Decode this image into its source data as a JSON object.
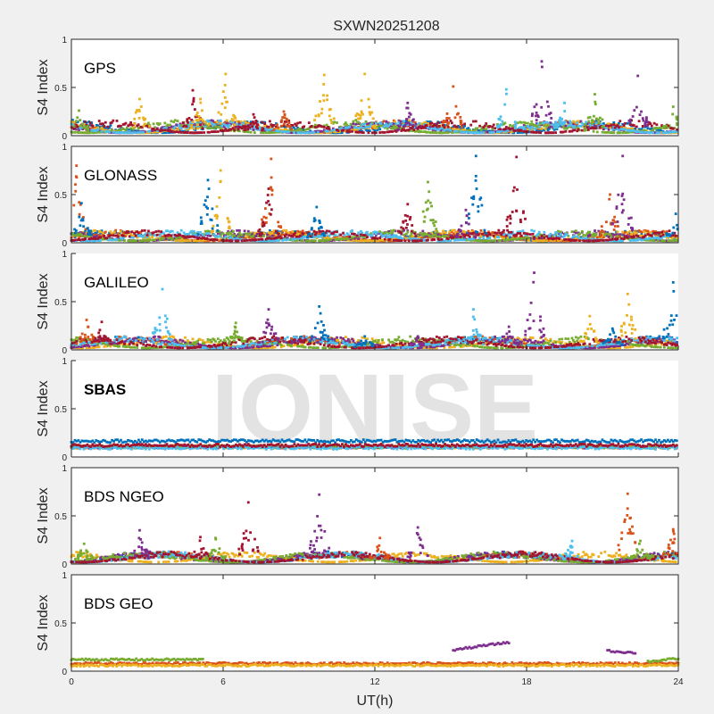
{
  "chart_data": {
    "type": "scatter",
    "title": "SXWN20251208",
    "xlabel": "UT(h)",
    "xlim": [
      0,
      24
    ],
    "xticks": [
      0,
      6,
      12,
      18,
      24
    ],
    "watermark": "IONISE",
    "series_colors": [
      "#0072bd",
      "#d95319",
      "#edb120",
      "#7e2f8e",
      "#77ac30",
      "#4dbeee",
      "#a2142f"
    ],
    "panels": [
      {
        "name": "GPS",
        "ylabel": "S4 Index",
        "ylim": [
          0,
          1
        ],
        "yticks": [
          0,
          0.5,
          1
        ],
        "baseline": [
          0.03,
          0.15
        ],
        "spikes": [
          {
            "t": 0.3,
            "peak": 0.26,
            "color": 4
          },
          {
            "t": 2.7,
            "peak": 0.38,
            "color": 2
          },
          {
            "t": 4.8,
            "peak": 0.47,
            "color": 6
          },
          {
            "t": 5.1,
            "peak": 0.38,
            "color": 2
          },
          {
            "t": 6.1,
            "peak": 0.64,
            "color": 2
          },
          {
            "t": 7.2,
            "peak": 0.22,
            "color": 6
          },
          {
            "t": 8.4,
            "peak": 0.25,
            "color": 1
          },
          {
            "t": 10.0,
            "peak": 0.63,
            "color": 2
          },
          {
            "t": 11.6,
            "peak": 0.64,
            "color": 2
          },
          {
            "t": 13.3,
            "peak": 0.34,
            "color": 3
          },
          {
            "t": 15.1,
            "peak": 0.51,
            "color": 1
          },
          {
            "t": 17.2,
            "peak": 0.48,
            "color": 5
          },
          {
            "t": 18.6,
            "peak": 0.77,
            "color": 3
          },
          {
            "t": 19.5,
            "peak": 0.34,
            "color": 5
          },
          {
            "t": 20.7,
            "peak": 0.43,
            "color": 4
          },
          {
            "t": 22.4,
            "peak": 0.62,
            "color": 3
          },
          {
            "t": 23.8,
            "peak": 0.3,
            "color": 4
          }
        ]
      },
      {
        "name": "GLONASS",
        "ylabel": "S4 Index",
        "ylim": [
          0,
          1
        ],
        "yticks": [
          0,
          0.5,
          1
        ],
        "baseline": [
          0.02,
          0.12
        ],
        "spikes": [
          {
            "t": 0.2,
            "peak": 0.8,
            "color": 1
          },
          {
            "t": 0.4,
            "peak": 0.41,
            "color": 0
          },
          {
            "t": 5.4,
            "peak": 0.65,
            "color": 0
          },
          {
            "t": 5.9,
            "peak": 0.75,
            "color": 2
          },
          {
            "t": 7.9,
            "peak": 0.87,
            "color": 1
          },
          {
            "t": 7.8,
            "peak": 0.56,
            "color": 6
          },
          {
            "t": 9.7,
            "peak": 0.37,
            "color": 0
          },
          {
            "t": 13.3,
            "peak": 0.4,
            "color": 6
          },
          {
            "t": 14.1,
            "peak": 0.63,
            "color": 4
          },
          {
            "t": 16.0,
            "peak": 0.9,
            "color": 0
          },
          {
            "t": 15.6,
            "peak": 0.34,
            "color": 3
          },
          {
            "t": 17.6,
            "peak": 0.89,
            "color": 6
          },
          {
            "t": 21.3,
            "peak": 0.5,
            "color": 1
          },
          {
            "t": 21.8,
            "peak": 0.9,
            "color": 3
          },
          {
            "t": 23.9,
            "peak": 0.3,
            "color": 0
          }
        ]
      },
      {
        "name": "GALILEO",
        "ylabel": "S4 Index",
        "ylim": [
          0,
          1
        ],
        "yticks": [
          0,
          0.5,
          1
        ],
        "baseline": [
          0.02,
          0.13
        ],
        "spikes": [
          {
            "t": 0.6,
            "peak": 0.31,
            "color": 1
          },
          {
            "t": 1.2,
            "peak": 0.29,
            "color": 6
          },
          {
            "t": 3.6,
            "peak": 0.63,
            "color": 5
          },
          {
            "t": 6.5,
            "peak": 0.28,
            "color": 4
          },
          {
            "t": 7.8,
            "peak": 0.42,
            "color": 3
          },
          {
            "t": 9.8,
            "peak": 0.45,
            "color": 0
          },
          {
            "t": 11.6,
            "peak": 0.14,
            "color": 0
          },
          {
            "t": 13.7,
            "peak": 0.14,
            "color": 3
          },
          {
            "t": 15.9,
            "peak": 0.42,
            "color": 5
          },
          {
            "t": 17.3,
            "peak": 0.24,
            "color": 3
          },
          {
            "t": 18.3,
            "peak": 0.8,
            "color": 3
          },
          {
            "t": 20.5,
            "peak": 0.35,
            "color": 2
          },
          {
            "t": 21.4,
            "peak": 0.22,
            "color": 0
          },
          {
            "t": 22.0,
            "peak": 0.58,
            "color": 2
          },
          {
            "t": 23.8,
            "peak": 0.7,
            "color": 0
          }
        ]
      },
      {
        "name": "SBAS",
        "ylabel": "S4 Index",
        "ylim": [
          0,
          1
        ],
        "yticks": [
          0,
          0.5,
          1
        ],
        "baseline": [
          0.07,
          0.18
        ],
        "spikes": []
      },
      {
        "name": "BDS NGEO",
        "ylabel": "S4 Index",
        "ylim": [
          0,
          1
        ],
        "yticks": [
          0,
          0.5,
          1
        ],
        "baseline": [
          0.02,
          0.12
        ],
        "spikes": [
          {
            "t": 0.5,
            "peak": 0.21,
            "color": 4
          },
          {
            "t": 2.7,
            "peak": 0.35,
            "color": 3
          },
          {
            "t": 5.1,
            "peak": 0.28,
            "color": 6
          },
          {
            "t": 5.7,
            "peak": 0.27,
            "color": 4
          },
          {
            "t": 7.0,
            "peak": 0.64,
            "color": 6
          },
          {
            "t": 9.8,
            "peak": 0.72,
            "color": 3
          },
          {
            "t": 12.2,
            "peak": 0.27,
            "color": 1
          },
          {
            "t": 13.7,
            "peak": 0.38,
            "color": 3
          },
          {
            "t": 19.8,
            "peak": 0.24,
            "color": 5
          },
          {
            "t": 22.0,
            "peak": 0.73,
            "color": 1
          },
          {
            "t": 22.5,
            "peak": 0.24,
            "color": 4
          },
          {
            "t": 23.8,
            "peak": 0.36,
            "color": 1
          }
        ]
      },
      {
        "name": "BDS GEO",
        "ylabel": "S4 Index",
        "ylim": [
          0,
          1
        ],
        "yticks": [
          0,
          0.5,
          1
        ],
        "baseline": [
          0.05,
          0.1
        ],
        "tracks": [
          {
            "color": 4,
            "t0": 0,
            "t1": 5.2,
            "y": 0.12
          },
          {
            "color": 1,
            "t0": 0,
            "t1": 24,
            "y": 0.08
          },
          {
            "color": 2,
            "t0": 0,
            "t1": 24,
            "y": 0.06
          },
          {
            "color": 3,
            "t0": 15.1,
            "t1": 17.3,
            "y": 0.22,
            "y_end": 0.3
          },
          {
            "color": 3,
            "t0": 21.2,
            "t1": 22.3,
            "y": 0.21,
            "y_end": 0.19
          },
          {
            "color": 4,
            "t0": 22.8,
            "t1": 24,
            "y": 0.1,
            "y_end": 0.13
          }
        ]
      }
    ]
  }
}
